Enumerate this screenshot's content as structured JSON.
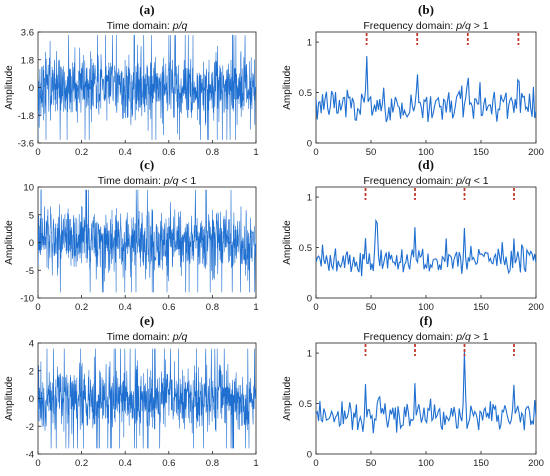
{
  "figure": {
    "signal_color": "#1f6fd1",
    "marker_color": "#c0392b"
  },
  "chart_data": [
    {
      "panel": "(a)",
      "type": "line",
      "domain": "time",
      "title_prefix": "Time domain: ",
      "title_var": "p/q",
      "title_suffix": "",
      "ylabel": "Amplitude",
      "xlabel": "",
      "xlim": [
        0,
        1
      ],
      "ylim": [
        -3.6,
        3.6
      ],
      "xticks": [
        "0",
        "0.2",
        "0.4",
        "0.6",
        "0.8",
        "1"
      ],
      "yticks": [
        "-3.6",
        "-1.8",
        "0",
        "1.8",
        "3.6"
      ],
      "amplitude_range": [
        -3.4,
        3.4
      ],
      "grid": false
    },
    {
      "panel": "(b)",
      "type": "line",
      "domain": "frequency",
      "title_prefix": "Frequency domain: ",
      "title_var": "p/q",
      "title_suffix": " > 1",
      "ylabel": "Amplitude",
      "xlabel": "",
      "xlim": [
        0,
        200
      ],
      "ylim": [
        0,
        1.1
      ],
      "xticks": [
        "0",
        "50",
        "100",
        "150",
        "200"
      ],
      "yticks": [
        "0",
        "0.5",
        "1"
      ],
      "peaks": [
        {
          "x": 46,
          "y": 0.92
        },
        {
          "x": 92,
          "y": 0.78
        },
        {
          "x": 138,
          "y": 0.8
        },
        {
          "x": 184,
          "y": 0.82
        }
      ],
      "markers_x": [
        46,
        92,
        138,
        184
      ],
      "grid": false
    },
    {
      "panel": "(c)",
      "type": "line",
      "domain": "time",
      "title_prefix": "Time domain: ",
      "title_var": "p/q",
      "title_suffix": " < 1",
      "ylabel": "Amplitude",
      "xlabel": "",
      "xlim": [
        0,
        1
      ],
      "ylim": [
        -10,
        10
      ],
      "xticks": [
        "0",
        "0.2",
        "0.4",
        "0.6",
        "0.8",
        "1"
      ],
      "yticks": [
        "-10",
        "-5",
        "0",
        "5",
        "10"
      ],
      "amplitude_range": [
        -9,
        9.5
      ],
      "grid": false
    },
    {
      "panel": "(d)",
      "type": "line",
      "domain": "frequency",
      "title_prefix": "Frequency domain: ",
      "title_var": "p/q",
      "title_suffix": " < 1",
      "ylabel": "Amplitude",
      "xlabel": "",
      "xlim": [
        0,
        200
      ],
      "ylim": [
        0,
        1.1
      ],
      "xticks": [
        "0",
        "50",
        "100",
        "150",
        "200"
      ],
      "yticks": [
        "0",
        "0.5",
        "1"
      ],
      "peaks": [
        {
          "x": 45,
          "y": 0.6
        },
        {
          "x": 55,
          "y": 1.0
        },
        {
          "x": 90,
          "y": 0.72
        },
        {
          "x": 135,
          "y": 0.72
        },
        {
          "x": 180,
          "y": 0.62
        }
      ],
      "markers_x": [
        45,
        90,
        135,
        180
      ],
      "grid": false
    },
    {
      "panel": "(e)",
      "type": "line",
      "domain": "time",
      "title_prefix": "Time domain: ",
      "title_var": "p/q",
      "title_suffix": "",
      "ylabel": "Amplitude",
      "xlabel": "",
      "xlim": [
        0,
        1
      ],
      "ylim": [
        -4,
        4
      ],
      "xticks": [
        "0",
        "0.2",
        "0.4",
        "0.6",
        "0.8",
        "1"
      ],
      "yticks": [
        "-4",
        "-2",
        "0",
        "2",
        "4"
      ],
      "amplitude_range": [
        -3.6,
        3.6
      ],
      "grid": false
    },
    {
      "panel": "(f)",
      "type": "line",
      "domain": "frequency",
      "title_prefix": "Frequency domain: ",
      "title_var": "p/q",
      "title_suffix": " > 1",
      "ylabel": "Amplitude",
      "xlabel": "",
      "xlim": [
        0,
        200
      ],
      "ylim": [
        0,
        1.1
      ],
      "xticks": [
        "0",
        "50",
        "100",
        "150",
        "200"
      ],
      "yticks": [
        "0",
        "0.5",
        "1"
      ],
      "peaks": [
        {
          "x": 45,
          "y": 0.7
        },
        {
          "x": 90,
          "y": 0.72
        },
        {
          "x": 135,
          "y": 1.05
        },
        {
          "x": 180,
          "y": 0.72
        }
      ],
      "markers_x": [
        45,
        90,
        135,
        180
      ],
      "grid": false
    }
  ]
}
